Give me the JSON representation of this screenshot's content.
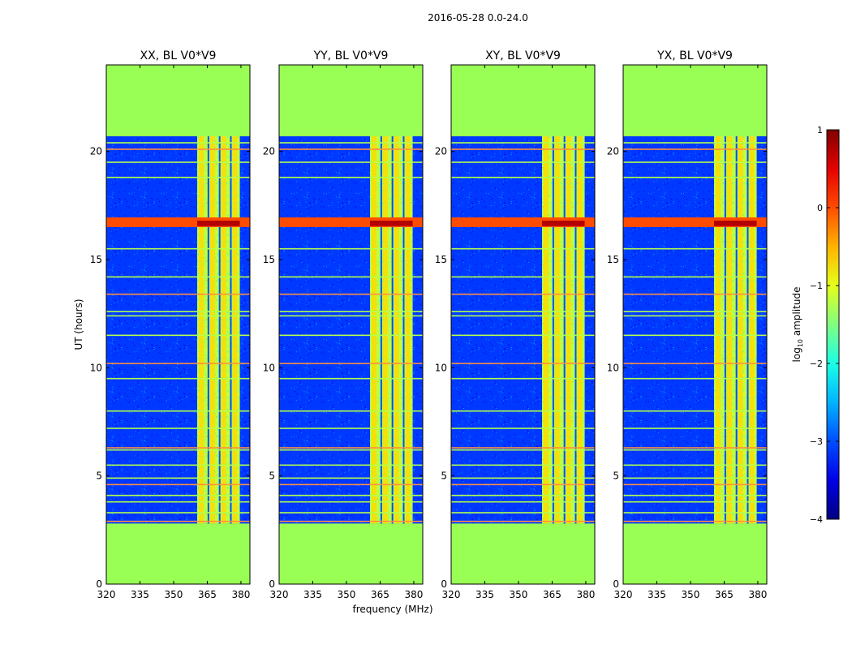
{
  "figure_title": "2016-05-28 0.0-24.0",
  "chart_data": {
    "type": "heatmap",
    "title": "2016-05-28 0.0-24.0",
    "xlabel": "frequency (MHz)",
    "ylabel": "UT (hours)",
    "x_ticks": [
      320,
      335,
      350,
      365,
      380
    ],
    "y_ticks": [
      0,
      5,
      10,
      15,
      20
    ],
    "xlim": [
      320,
      384
    ],
    "ylim": [
      0,
      24
    ],
    "data_coverage_ut": [
      2.8,
      20.7
    ],
    "band_mhz": [
      360.5,
      379.5
    ],
    "band_columns_mhz": [
      360.5,
      365.5,
      370.5,
      375.5
    ],
    "no_data_color": "#99ff55",
    "flagged_rows_ut": [
      2.9,
      3.3,
      3.8,
      4.1,
      4.6,
      4.9,
      5.5,
      6.2,
      6.3,
      7.2,
      8.0,
      9.5,
      10.2,
      11.5,
      12.4,
      12.6,
      13.4,
      14.2,
      15.5,
      16.6,
      16.7,
      16.9,
      18.8,
      19.5,
      20.1,
      20.4
    ],
    "colorbar": {
      "label": "log10 amplitude",
      "label_main": "log",
      "label_sub": "10",
      "label_rest": " amplitude",
      "range": [
        -4,
        1
      ],
      "ticks": [
        "1",
        "0",
        "−1",
        "−2",
        "−3",
        "−4"
      ],
      "tick_values": [
        1,
        0,
        -1,
        -2,
        -3,
        -4
      ],
      "colormap": "jet"
    },
    "panels": [
      {
        "title": "XX, BL V0*V9",
        "pol": "XX"
      },
      {
        "title": "YY, BL V0*V9",
        "pol": "YY"
      },
      {
        "title": "XY, BL V0*V9",
        "pol": "XY"
      },
      {
        "title": "YX, BL V0*V9",
        "pol": "YX"
      }
    ]
  }
}
